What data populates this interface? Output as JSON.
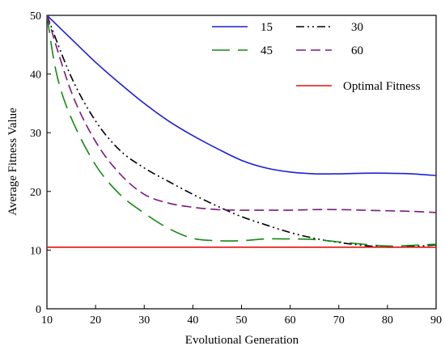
{
  "chart_data": {
    "type": "line",
    "xlabel": "Evolutional Generation",
    "ylabel": "Average Fitness Value",
    "xlim": [
      10,
      90
    ],
    "ylim": [
      0,
      50
    ],
    "xticks": [
      10,
      20,
      30,
      40,
      50,
      60,
      70,
      80,
      90
    ],
    "yticks": [
      0,
      10,
      20,
      30,
      40,
      50
    ],
    "grid": false,
    "legend_position": "top-right",
    "series": [
      {
        "name": "15",
        "color": "#1f1fd6",
        "dash": "solid",
        "x": [
          10,
          15,
          20,
          25,
          30,
          35,
          40,
          45,
          50,
          55,
          60,
          65,
          70,
          75,
          80,
          85,
          90
        ],
        "y": [
          50.0,
          46.0,
          42.0,
          38.4,
          35.0,
          32.0,
          29.5,
          27.3,
          25.3,
          24.0,
          23.3,
          23.0,
          23.0,
          23.1,
          23.1,
          23.0,
          22.7
        ]
      },
      {
        "name": "30",
        "color": "#000000",
        "dash": "dashdot",
        "x": [
          10,
          15,
          20,
          25,
          30,
          35,
          40,
          45,
          50,
          55,
          60,
          65,
          70,
          75,
          80,
          85,
          90
        ],
        "y": [
          50.0,
          39.5,
          32.0,
          27.0,
          24.0,
          21.7,
          19.5,
          17.5,
          15.7,
          14.3,
          13.0,
          12.0,
          11.3,
          10.8,
          10.5,
          10.6,
          10.9
        ]
      },
      {
        "name": "45",
        "color": "#138a13",
        "dash": "longdash",
        "x": [
          10,
          12,
          15,
          20,
          25,
          30,
          35,
          40,
          45,
          50,
          55,
          60,
          65,
          70,
          75,
          80,
          85,
          90
        ],
        "y": [
          50.0,
          40.0,
          32.5,
          24.5,
          19.5,
          16.3,
          13.7,
          12.0,
          11.6,
          11.6,
          11.9,
          11.9,
          11.8,
          11.4,
          11.0,
          10.7,
          10.8,
          11.0
        ]
      },
      {
        "name": "60",
        "color": "#7b1a7b",
        "dash": "dashed",
        "x": [
          10,
          15,
          20,
          25,
          30,
          35,
          40,
          45,
          50,
          55,
          60,
          65,
          70,
          75,
          80,
          85,
          90
        ],
        "y": [
          50.0,
          37.0,
          28.5,
          23.0,
          19.5,
          18.0,
          17.3,
          16.9,
          16.8,
          16.8,
          16.8,
          16.9,
          16.9,
          16.8,
          16.7,
          16.6,
          16.4
        ]
      },
      {
        "name": "Optimal Fitness",
        "color": "#e01010",
        "dash": "solid",
        "x": [
          10,
          90
        ],
        "y": [
          10.5,
          10.5
        ]
      }
    ]
  }
}
